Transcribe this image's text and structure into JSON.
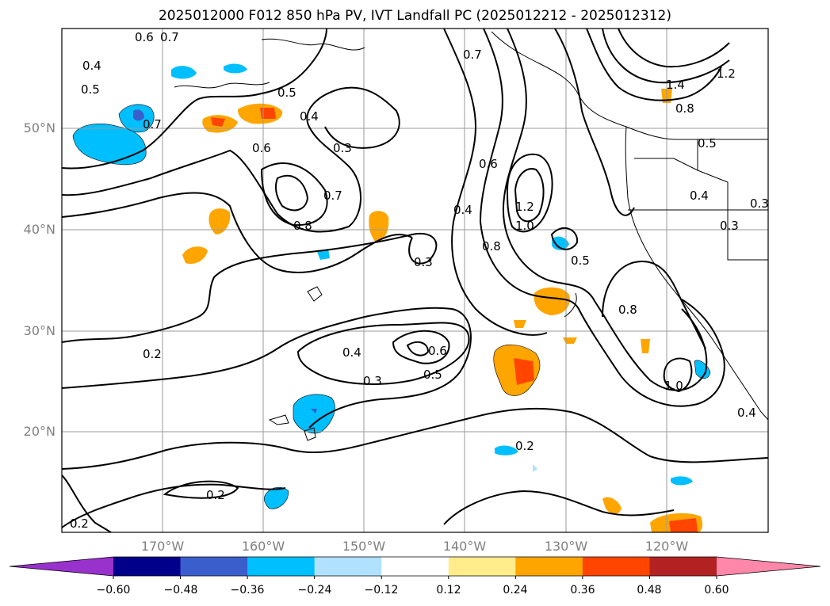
{
  "title": "2025012000 F012 850 hPa PV, IVT Landfall PC (2025012212 - 2025012312)",
  "lat_labels": [
    "50°N",
    "40°N",
    "30°N",
    "20°N"
  ],
  "lon_labels": [
    "170°W",
    "160°W",
    "150°W",
    "140°W",
    "130°W",
    "120°W"
  ],
  "contour_labels": [
    "0.7",
    "0.6",
    "0.4",
    "0.5",
    "0.7",
    "0.5",
    "0.4",
    "0.6",
    "0.3",
    "0.7",
    "0.8",
    "0.3",
    "0.4",
    "0.6",
    "1.2",
    "1.0",
    "0.8",
    "0.5",
    "0.7",
    "1.4",
    "1.2",
    "0.8",
    "0.5",
    "0.4",
    "0.3",
    "0.3",
    "0.8",
    "0.2",
    "0.4",
    "0.6",
    "0.5",
    "0.3",
    "0.2",
    "0.2",
    "1.0",
    "0.4",
    "0.2"
  ],
  "colorbar": {
    "ticks": [
      "−0.60",
      "−0.48",
      "−0.36",
      "−0.24",
      "−0.12",
      "0.12",
      "0.24",
      "0.36",
      "0.48",
      "0.60"
    ],
    "colors": [
      "#9932CC",
      "#00008B",
      "#3A5FCD",
      "#00BFFF",
      "#B0E2FF",
      "#FFFFFF",
      "#FFEC8B",
      "#FFA500",
      "#FF4500",
      "#B22222",
      "#FF88AA"
    ]
  }
}
